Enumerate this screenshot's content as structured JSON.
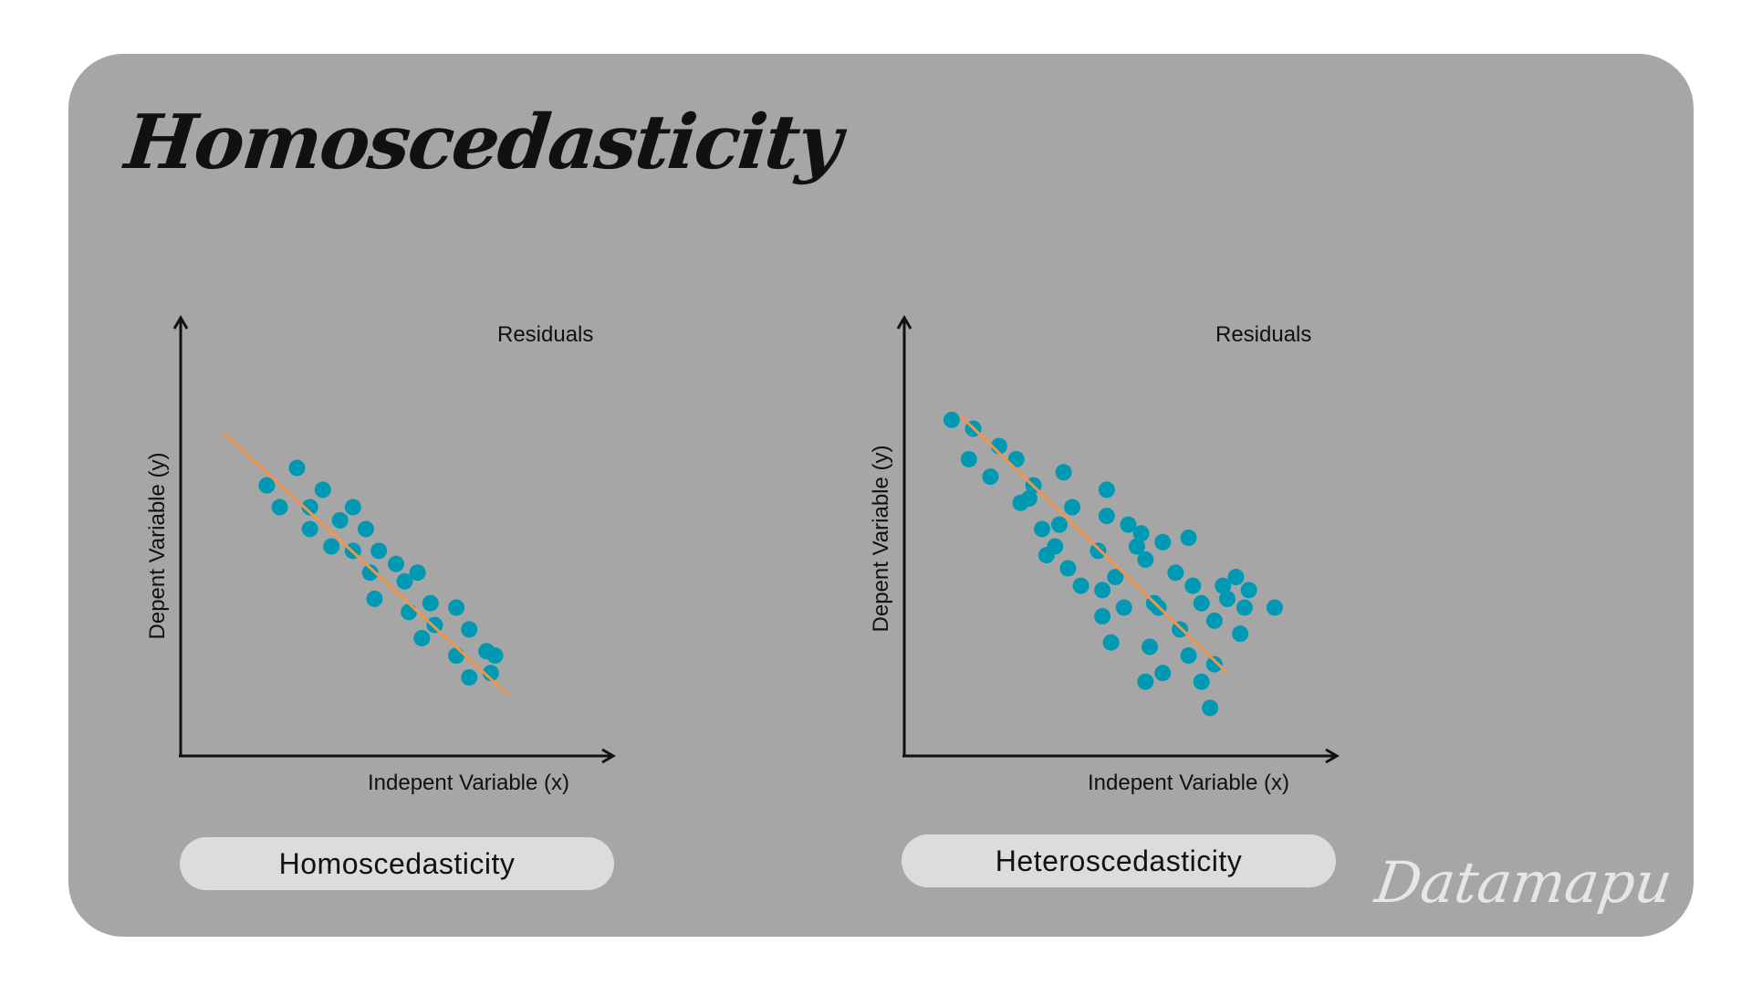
{
  "title": "Homoscedasticity",
  "watermark": "Datamapu",
  "colors": {
    "background": "#a6a6a6",
    "point": "#0099b3",
    "line": "#f0954a",
    "axis": "#111111",
    "pill": "#dcdcdc"
  },
  "panels": [
    {
      "caption": "Homoscedasticity",
      "residuals_label": "Residuals",
      "xlabel": "Indepent Variable (x)",
      "ylabel": "Depent Variable (y)"
    },
    {
      "caption": "Heteroscedasticity",
      "residuals_label": "Residuals",
      "xlabel": "Indepent Variable (x)",
      "ylabel": "Depent Variable (y)"
    }
  ],
  "chart_data": [
    {
      "type": "scatter",
      "xlabel": "Indepent Variable (x)",
      "ylabel": "Depent Variable (y)",
      "annotation": "Residuals",
      "fit_line": {
        "x": [
          10,
          76
        ],
        "y": [
          74,
          14
        ]
      },
      "points": [
        {
          "x": 20,
          "y": 62
        },
        {
          "x": 23,
          "y": 57
        },
        {
          "x": 27,
          "y": 66
        },
        {
          "x": 30,
          "y": 57
        },
        {
          "x": 30,
          "y": 52
        },
        {
          "x": 33,
          "y": 61
        },
        {
          "x": 35,
          "y": 48
        },
        {
          "x": 37,
          "y": 54
        },
        {
          "x": 40,
          "y": 47
        },
        {
          "x": 40,
          "y": 57
        },
        {
          "x": 43,
          "y": 52
        },
        {
          "x": 44,
          "y": 42
        },
        {
          "x": 46,
          "y": 47
        },
        {
          "x": 45,
          "y": 36
        },
        {
          "x": 50,
          "y": 44
        },
        {
          "x": 52,
          "y": 40
        },
        {
          "x": 53,
          "y": 33
        },
        {
          "x": 56,
          "y": 27
        },
        {
          "x": 55,
          "y": 42
        },
        {
          "x": 58,
          "y": 35
        },
        {
          "x": 59,
          "y": 30
        },
        {
          "x": 64,
          "y": 23
        },
        {
          "x": 64,
          "y": 34
        },
        {
          "x": 67,
          "y": 18
        },
        {
          "x": 67,
          "y": 29
        },
        {
          "x": 71,
          "y": 24
        },
        {
          "x": 72,
          "y": 19
        },
        {
          "x": 73,
          "y": 23
        }
      ]
    },
    {
      "type": "scatter",
      "xlabel": "Indepent Variable (x)",
      "ylabel": "Depent Variable (y)",
      "annotation": "Residuals",
      "fit_line": {
        "x": [
          13,
          75
        ],
        "y": [
          78,
          19
        ]
      },
      "points": [
        {
          "x": 11,
          "y": 77
        },
        {
          "x": 15,
          "y": 68
        },
        {
          "x": 16,
          "y": 75
        },
        {
          "x": 20,
          "y": 64
        },
        {
          "x": 22,
          "y": 71
        },
        {
          "x": 26,
          "y": 68
        },
        {
          "x": 27,
          "y": 58
        },
        {
          "x": 29,
          "y": 59
        },
        {
          "x": 30,
          "y": 62
        },
        {
          "x": 32,
          "y": 52
        },
        {
          "x": 33,
          "y": 46
        },
        {
          "x": 35,
          "y": 48
        },
        {
          "x": 36,
          "y": 53
        },
        {
          "x": 37,
          "y": 65
        },
        {
          "x": 39,
          "y": 57
        },
        {
          "x": 38,
          "y": 43
        },
        {
          "x": 41,
          "y": 39
        },
        {
          "x": 45,
          "y": 47
        },
        {
          "x": 46,
          "y": 32
        },
        {
          "x": 46,
          "y": 38
        },
        {
          "x": 47,
          "y": 61
        },
        {
          "x": 47,
          "y": 55
        },
        {
          "x": 48,
          "y": 26
        },
        {
          "x": 49,
          "y": 41
        },
        {
          "x": 51,
          "y": 34
        },
        {
          "x": 52,
          "y": 53
        },
        {
          "x": 54,
          "y": 48
        },
        {
          "x": 55,
          "y": 51
        },
        {
          "x": 56,
          "y": 45
        },
        {
          "x": 56,
          "y": 17
        },
        {
          "x": 57,
          "y": 25
        },
        {
          "x": 58,
          "y": 35
        },
        {
          "x": 60,
          "y": 19
        },
        {
          "x": 59,
          "y": 34
        },
        {
          "x": 60,
          "y": 49
        },
        {
          "x": 63,
          "y": 42
        },
        {
          "x": 64,
          "y": 29
        },
        {
          "x": 66,
          "y": 23
        },
        {
          "x": 67,
          "y": 39
        },
        {
          "x": 69,
          "y": 35
        },
        {
          "x": 69,
          "y": 17
        },
        {
          "x": 66,
          "y": 50
        },
        {
          "x": 71,
          "y": 11
        },
        {
          "x": 72,
          "y": 31
        },
        {
          "x": 72,
          "y": 21
        },
        {
          "x": 74,
          "y": 39
        },
        {
          "x": 75,
          "y": 36
        },
        {
          "x": 77,
          "y": 41
        },
        {
          "x": 78,
          "y": 28
        },
        {
          "x": 79,
          "y": 34
        },
        {
          "x": 80,
          "y": 38
        },
        {
          "x": 86,
          "y": 34
        }
      ]
    }
  ]
}
